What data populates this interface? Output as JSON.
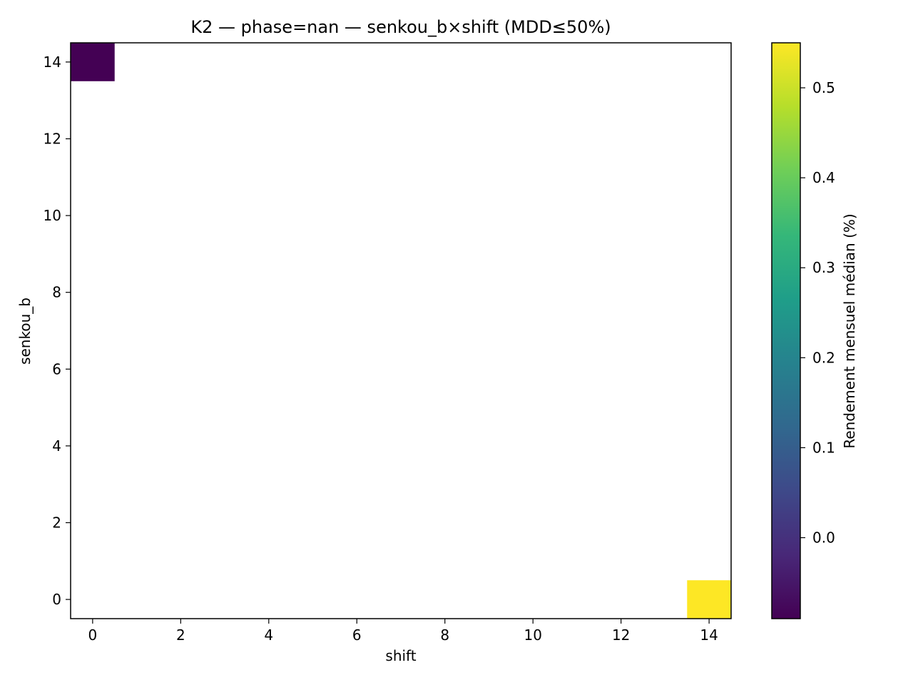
{
  "chart_data": {
    "type": "heatmap",
    "title": "K2 — phase=nan — senkou_b×shift (MDD≤50%)",
    "xlabel": "shift",
    "ylabel": "senkou_b",
    "xlim": [
      -0.5,
      14.5
    ],
    "ylim": [
      -0.5,
      14.5
    ],
    "xticks": [
      0,
      2,
      4,
      6,
      8,
      10,
      12,
      14
    ],
    "yticks": [
      0,
      2,
      4,
      6,
      8,
      10,
      12,
      14
    ],
    "cells": [
      {
        "shift": 0,
        "senkou_b": 14,
        "value": -0.09
      },
      {
        "shift": 14,
        "senkou_b": 0,
        "value": 0.55
      }
    ],
    "colorbar": {
      "label": "Rendement mensuel médian (%)",
      "range": [
        -0.09,
        0.55
      ],
      "ticks": [
        0.0,
        0.1,
        0.2,
        0.3,
        0.4,
        0.5
      ],
      "tick_labels": [
        "0.0",
        "0.1",
        "0.2",
        "0.3",
        "0.4",
        "0.5"
      ],
      "colormap": "viridis",
      "colors": [
        "#440154",
        "#482878",
        "#3e4989",
        "#31688e",
        "#26828e",
        "#1f9e89",
        "#35b779",
        "#6ece58",
        "#b5de2b",
        "#fde725"
      ]
    },
    "grid": false
  }
}
